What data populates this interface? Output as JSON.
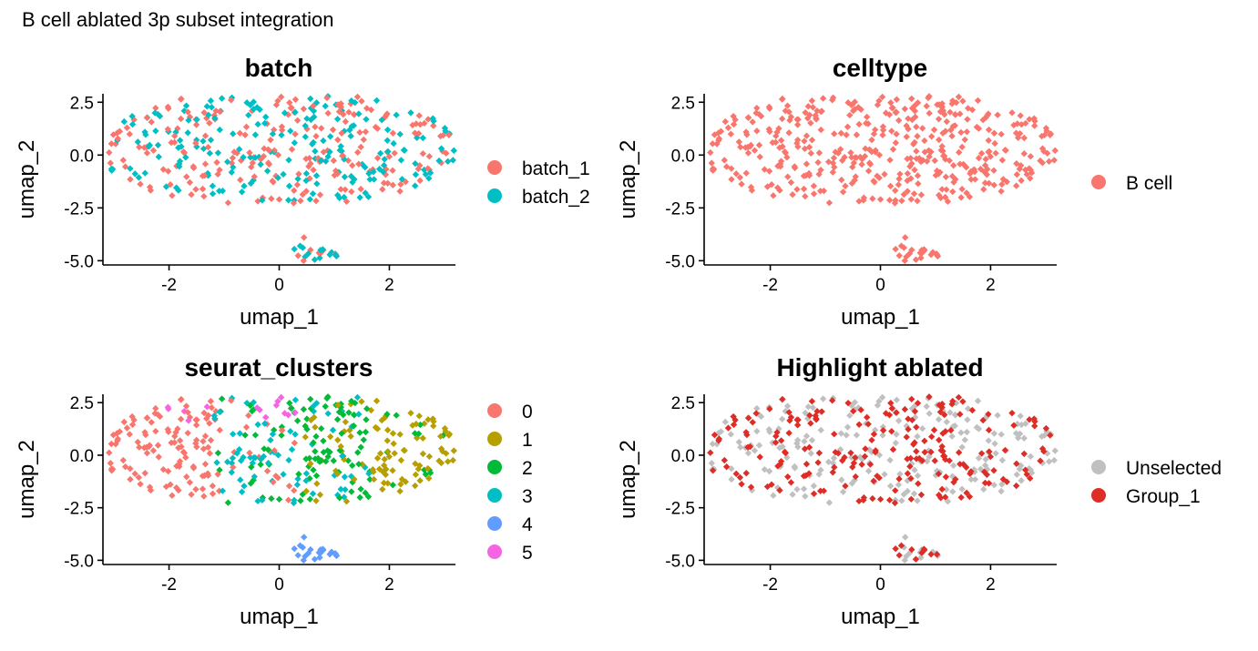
{
  "title": "B cell ablated 3p subset integration",
  "chart_data": [
    {
      "type": "scatter",
      "title": "batch",
      "xlabel": "umap_1",
      "ylabel": "umap_2",
      "xlim": [
        -3.2,
        3.2
      ],
      "ylim": [
        -5.2,
        2.9
      ],
      "xticks": [
        "-2",
        "0",
        "2"
      ],
      "yticks": [
        "2.5",
        "0.0",
        "-2.5",
        "-5.0"
      ],
      "legend": [
        {
          "label": "batch_1",
          "color": "#F8766D"
        },
        {
          "label": "batch_2",
          "color": "#00BFC4"
        }
      ],
      "color_by": "batch"
    },
    {
      "type": "scatter",
      "title": "celltype",
      "xlabel": "umap_1",
      "ylabel": "umap_2",
      "xlim": [
        -3.2,
        3.2
      ],
      "ylim": [
        -5.2,
        2.9
      ],
      "xticks": [
        "-2",
        "0",
        "2"
      ],
      "yticks": [
        "2.5",
        "0.0",
        "-2.5",
        "-5.0"
      ],
      "legend": [
        {
          "label": "B cell",
          "color": "#F8766D"
        }
      ],
      "color_by": "celltype"
    },
    {
      "type": "scatter",
      "title": "seurat_clusters",
      "xlabel": "umap_1",
      "ylabel": "umap_2",
      "xlim": [
        -3.2,
        3.2
      ],
      "ylim": [
        -5.2,
        2.9
      ],
      "xticks": [
        "-2",
        "0",
        "2"
      ],
      "yticks": [
        "2.5",
        "0.0",
        "-2.5",
        "-5.0"
      ],
      "legend": [
        {
          "label": "0",
          "color": "#F8766D"
        },
        {
          "label": "1",
          "color": "#B79F00"
        },
        {
          "label": "2",
          "color": "#00BA38"
        },
        {
          "label": "3",
          "color": "#00BFC4"
        },
        {
          "label": "4",
          "color": "#619CFF"
        },
        {
          "label": "5",
          "color": "#F564E3"
        }
      ],
      "color_by": "cluster"
    },
    {
      "type": "scatter",
      "title": "Highlight ablated",
      "xlabel": "umap_1",
      "ylabel": "umap_2",
      "xlim": [
        -3.2,
        3.2
      ],
      "ylim": [
        -5.2,
        2.9
      ],
      "xticks": [
        "-2",
        "0",
        "2"
      ],
      "yticks": [
        "2.5",
        "0.0",
        "-2.5",
        "-5.0"
      ],
      "legend": [
        {
          "label": "Unselected",
          "color": "#C0C0C0"
        },
        {
          "label": "Group_1",
          "color": "#DE2D26"
        }
      ],
      "color_by": "highlight"
    }
  ]
}
